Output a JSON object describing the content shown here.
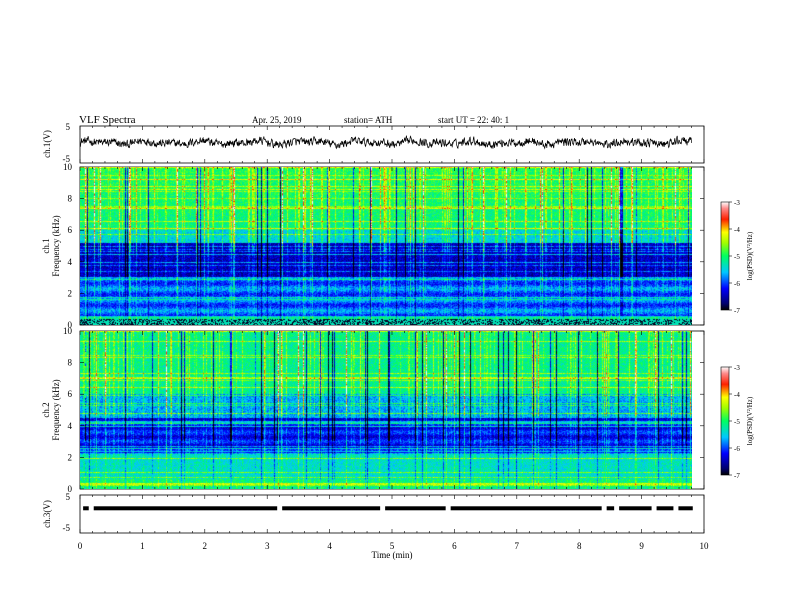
{
  "header": {
    "title": "VLF  Spectra",
    "date": "Apr. 25, 2019",
    "station": "station= ATH",
    "start": "start  UT  =    22: 40: 1"
  },
  "chart_data": [
    {
      "type": "line",
      "panel": "ch1-waveform",
      "ylabel": "ch.1(V)",
      "ylim": [
        -5,
        5
      ],
      "yticks": [
        "5",
        "-5"
      ],
      "xlim": [
        0,
        10
      ],
      "color": "#000000",
      "baseline": 0.5,
      "amplitude": 0.9,
      "description_level": "noisy waveform around 0.5 V"
    },
    {
      "type": "heatmap",
      "panel": "ch1-spectrogram",
      "ylabel": [
        "ch.1",
        "Frequency  (kHz)"
      ],
      "ylim": [
        0,
        10
      ],
      "yticks": [
        "0",
        "2",
        "4",
        "6",
        "8",
        "10"
      ],
      "xlim": [
        0,
        10
      ],
      "colorbar": {
        "label": "log(PSD)(V²/Hz)",
        "range": [
          -7,
          -3
        ],
        "ticks": [
          "-3",
          "-4",
          "-5",
          "-6",
          "-7"
        ]
      }
    },
    {
      "type": "heatmap",
      "panel": "ch2-spectrogram",
      "ylabel": [
        "ch.2",
        "Frequency  (kHz)"
      ],
      "ylim": [
        0,
        10
      ],
      "yticks": [
        "0",
        "2",
        "4",
        "6",
        "8",
        "10"
      ],
      "xlim": [
        0,
        10
      ],
      "colorbar": {
        "label": "log(PSD)(V²/Hz)",
        "range": [
          -7,
          -3
        ],
        "ticks": [
          "-3",
          "-4",
          "-5",
          "-6",
          "-7"
        ]
      }
    },
    {
      "type": "line",
      "panel": "ch3-waveform",
      "ylabel": "ch.3(V)",
      "ylim": [
        -5,
        5
      ],
      "yticks": [
        "5",
        "-5"
      ],
      "xlim": [
        0,
        10
      ],
      "color": "#000000",
      "baseline": 1.5,
      "dropouts_min": [
        0.18,
        3.2,
        4.85,
        5.9,
        8.4,
        8.6,
        9.2,
        9.55
      ]
    }
  ],
  "xaxis": {
    "label": "Time  (min)",
    "range": [
      0,
      10
    ],
    "ticks": [
      "0",
      "1",
      "2",
      "3",
      "4",
      "5",
      "6",
      "7",
      "8",
      "9",
      "10"
    ]
  }
}
